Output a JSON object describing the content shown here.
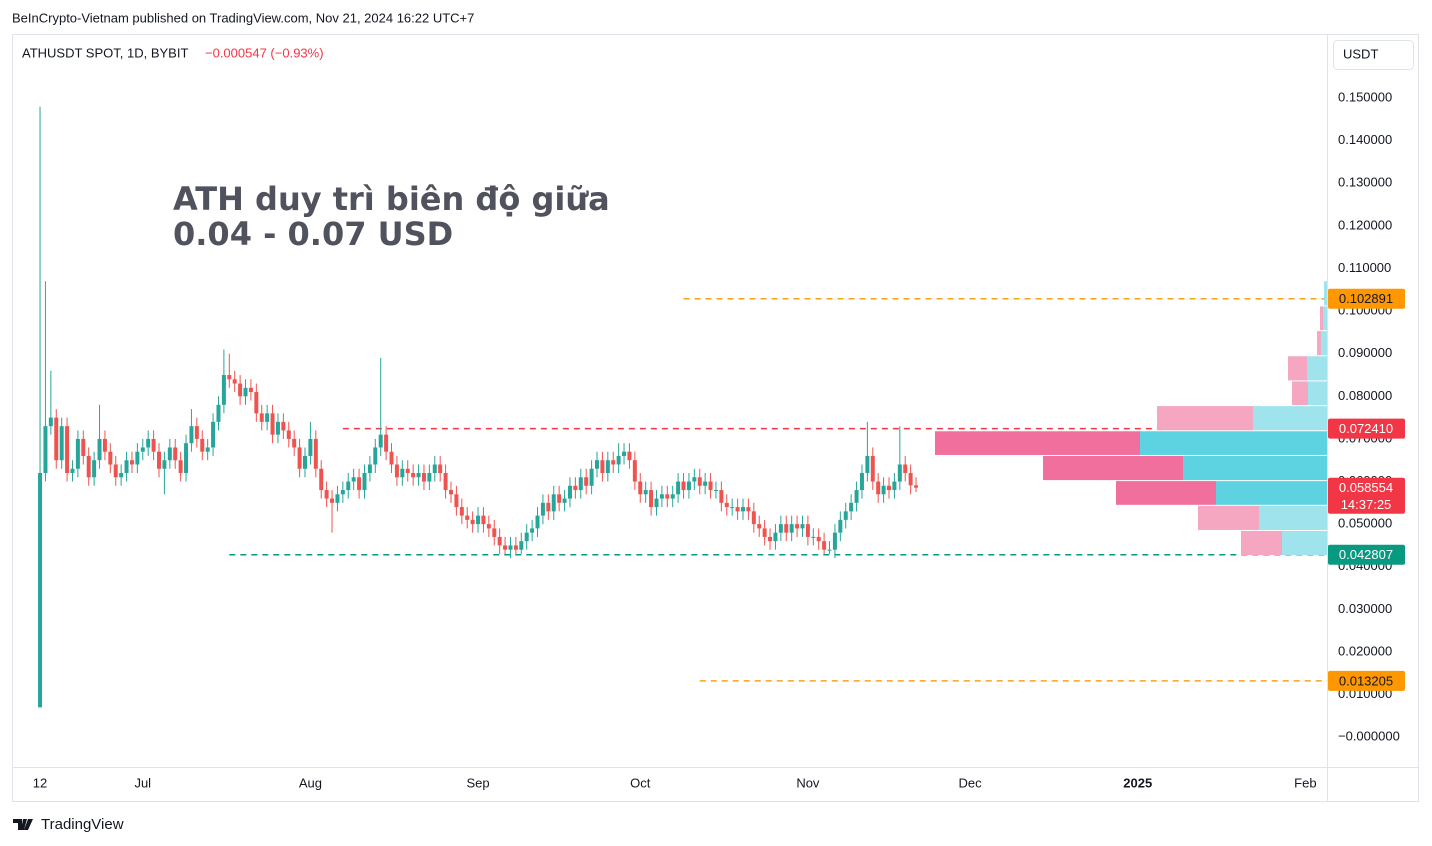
{
  "published": "BeInCrypto-Vietnam published on TradingView.com, Nov 21, 2024 16:22 UTC+7",
  "brand": "TradingView",
  "chart_data": {
    "type": "candlestick",
    "symbol": "ATHUSDT SPOT, 1D, BYBIT",
    "change": "−0.000547 (−0.93%)",
    "currency": "USDT",
    "annotation": [
      "ATH duy trì biên độ giữa",
      "0.04 - 0.07 USD"
    ],
    "countdown": "14:37:25",
    "up_color": "#26a69a",
    "down_color": "#ef5350",
    "grid": false,
    "xlim": [
      "2024-06-07",
      "2025-02-05"
    ],
    "xticks": [
      {
        "value": "2024-06-12",
        "label": "12"
      },
      {
        "value": "2024-07-01",
        "label": "Jul"
      },
      {
        "value": "2024-08-01",
        "label": "Aug"
      },
      {
        "value": "2024-09-01",
        "label": "Sep"
      },
      {
        "value": "2024-10-01",
        "label": "Oct"
      },
      {
        "value": "2024-11-01",
        "label": "Nov"
      },
      {
        "value": "2024-12-01",
        "label": "Dec"
      },
      {
        "value": "2025-01-01",
        "label": "2025"
      },
      {
        "value": "2025-02-01",
        "label": "Feb"
      }
    ],
    "ylim": [
      -0.007,
      0.1648
    ],
    "yticks": [
      {
        "value": 0,
        "label": "−0.000000"
      },
      {
        "value": 0.01,
        "label": "0.010000"
      },
      {
        "value": 0.02,
        "label": "0.020000"
      },
      {
        "value": 0.03,
        "label": "0.030000"
      },
      {
        "value": 0.04,
        "label": "0.040000"
      },
      {
        "value": 0.05,
        "label": "0.050000"
      },
      {
        "value": 0.06,
        "label": "0.060000"
      },
      {
        "value": 0.07,
        "label": "0.070000"
      },
      {
        "value": 0.08,
        "label": "0.080000"
      },
      {
        "value": 0.09,
        "label": "0.090000"
      },
      {
        "value": 0.1,
        "label": "0.100000"
      },
      {
        "value": 0.11,
        "label": "0.110000"
      },
      {
        "value": 0.12,
        "label": "0.120000"
      },
      {
        "value": 0.13,
        "label": "0.130000"
      },
      {
        "value": 0.14,
        "label": "0.140000"
      },
      {
        "value": 0.15,
        "label": "0.150000"
      }
    ],
    "x": [
      "2024-06-12",
      "2024-06-13",
      "2024-06-14",
      "2024-06-15",
      "2024-06-16",
      "2024-06-17",
      "2024-06-18",
      "2024-06-19",
      "2024-06-20",
      "2024-06-21",
      "2024-06-22",
      "2024-06-23",
      "2024-06-24",
      "2024-06-25",
      "2024-06-26",
      "2024-06-27",
      "2024-06-28",
      "2024-06-29",
      "2024-06-30",
      "2024-07-01",
      "2024-07-02",
      "2024-07-03",
      "2024-07-04",
      "2024-07-05",
      "2024-07-06",
      "2024-07-07",
      "2024-07-08",
      "2024-07-09",
      "2024-07-10",
      "2024-07-11",
      "2024-07-12",
      "2024-07-13",
      "2024-07-14",
      "2024-07-15",
      "2024-07-16",
      "2024-07-17",
      "2024-07-18",
      "2024-07-19",
      "2024-07-20",
      "2024-07-21",
      "2024-07-22",
      "2024-07-23",
      "2024-07-24",
      "2024-07-25",
      "2024-07-26",
      "2024-07-27",
      "2024-07-28",
      "2024-07-29",
      "2024-07-30",
      "2024-07-31",
      "2024-08-01",
      "2024-08-02",
      "2024-08-03",
      "2024-08-04",
      "2024-08-05",
      "2024-08-06",
      "2024-08-07",
      "2024-08-08",
      "2024-08-09",
      "2024-08-10",
      "2024-08-11",
      "2024-08-12",
      "2024-08-13",
      "2024-08-14",
      "2024-08-15",
      "2024-08-16",
      "2024-08-17",
      "2024-08-18",
      "2024-08-19",
      "2024-08-20",
      "2024-08-21",
      "2024-08-22",
      "2024-08-23",
      "2024-08-24",
      "2024-08-25",
      "2024-08-26",
      "2024-08-27",
      "2024-08-28",
      "2024-08-29",
      "2024-08-30",
      "2024-08-31",
      "2024-09-01",
      "2024-09-02",
      "2024-09-03",
      "2024-09-04",
      "2024-09-05",
      "2024-09-06",
      "2024-09-07",
      "2024-09-08",
      "2024-09-09",
      "2024-09-10",
      "2024-09-11",
      "2024-09-12",
      "2024-09-13",
      "2024-09-14",
      "2024-09-15",
      "2024-09-16",
      "2024-09-17",
      "2024-09-18",
      "2024-09-19",
      "2024-09-20",
      "2024-09-21",
      "2024-09-22",
      "2024-09-23",
      "2024-09-24",
      "2024-09-25",
      "2024-09-26",
      "2024-09-27",
      "2024-09-28",
      "2024-09-29",
      "2024-09-30",
      "2024-10-01",
      "2024-10-02",
      "2024-10-03",
      "2024-10-04",
      "2024-10-05",
      "2024-10-06",
      "2024-10-07",
      "2024-10-08",
      "2024-10-09",
      "2024-10-10",
      "2024-10-11",
      "2024-10-12",
      "2024-10-13",
      "2024-10-14",
      "2024-10-15",
      "2024-10-16",
      "2024-10-17",
      "2024-10-18",
      "2024-10-19",
      "2024-10-20",
      "2024-10-21",
      "2024-10-22",
      "2024-10-23",
      "2024-10-24",
      "2024-10-25",
      "2024-10-26",
      "2024-10-27",
      "2024-10-28",
      "2024-10-29",
      "2024-10-30",
      "2024-10-31",
      "2024-11-01",
      "2024-11-02",
      "2024-11-03",
      "2024-11-04",
      "2024-11-05",
      "2024-11-06",
      "2024-11-07",
      "2024-11-08",
      "2024-11-09",
      "2024-11-10",
      "2024-11-11",
      "2024-11-12",
      "2024-11-13",
      "2024-11-14",
      "2024-11-15",
      "2024-11-16",
      "2024-11-17",
      "2024-11-18",
      "2024-11-19",
      "2024-11-20",
      "2024-11-21"
    ],
    "ohlc": [
      [
        0.007,
        0.148,
        0.007,
        0.062
      ],
      [
        0.062,
        0.107,
        0.06,
        0.073
      ],
      [
        0.073,
        0.086,
        0.071,
        0.075
      ],
      [
        0.075,
        0.077,
        0.063,
        0.065
      ],
      [
        0.065,
        0.075,
        0.063,
        0.073
      ],
      [
        0.073,
        0.075,
        0.06,
        0.062
      ],
      [
        0.062,
        0.065,
        0.06,
        0.063
      ],
      [
        0.063,
        0.072,
        0.061,
        0.07
      ],
      [
        0.07,
        0.072,
        0.064,
        0.066
      ],
      [
        0.066,
        0.068,
        0.059,
        0.061
      ],
      [
        0.061,
        0.067,
        0.059,
        0.065
      ],
      [
        0.065,
        0.078,
        0.063,
        0.07
      ],
      [
        0.07,
        0.072,
        0.065,
        0.067
      ],
      [
        0.067,
        0.069,
        0.062,
        0.064
      ],
      [
        0.064,
        0.066,
        0.059,
        0.061
      ],
      [
        0.061,
        0.064,
        0.059,
        0.062
      ],
      [
        0.062,
        0.067,
        0.06,
        0.065
      ],
      [
        0.065,
        0.067,
        0.062,
        0.064
      ],
      [
        0.064,
        0.069,
        0.062,
        0.067
      ],
      [
        0.067,
        0.07,
        0.065,
        0.068
      ],
      [
        0.068,
        0.072,
        0.066,
        0.07
      ],
      [
        0.07,
        0.072,
        0.065,
        0.067
      ],
      [
        0.067,
        0.069,
        0.061,
        0.063
      ],
      [
        0.063,
        0.067,
        0.057,
        0.065
      ],
      [
        0.065,
        0.07,
        0.063,
        0.068
      ],
      [
        0.068,
        0.07,
        0.063,
        0.065
      ],
      [
        0.065,
        0.067,
        0.06,
        0.062
      ],
      [
        0.062,
        0.071,
        0.06,
        0.069
      ],
      [
        0.069,
        0.077,
        0.067,
        0.073
      ],
      [
        0.073,
        0.075,
        0.068,
        0.07
      ],
      [
        0.07,
        0.072,
        0.065,
        0.067
      ],
      [
        0.067,
        0.07,
        0.065,
        0.068
      ],
      [
        0.068,
        0.076,
        0.066,
        0.074
      ],
      [
        0.074,
        0.08,
        0.072,
        0.078
      ],
      [
        0.078,
        0.091,
        0.076,
        0.085
      ],
      [
        0.085,
        0.09,
        0.082,
        0.084
      ],
      [
        0.084,
        0.086,
        0.081,
        0.083
      ],
      [
        0.083,
        0.085,
        0.078,
        0.08
      ],
      [
        0.08,
        0.084,
        0.078,
        0.082
      ],
      [
        0.082,
        0.084,
        0.079,
        0.081
      ],
      [
        0.081,
        0.083,
        0.074,
        0.076
      ],
      [
        0.076,
        0.078,
        0.072,
        0.074
      ],
      [
        0.074,
        0.078,
        0.072,
        0.076
      ],
      [
        0.076,
        0.078,
        0.069,
        0.071
      ],
      [
        0.071,
        0.076,
        0.069,
        0.074
      ],
      [
        0.074,
        0.076,
        0.07,
        0.072
      ],
      [
        0.072,
        0.074,
        0.068,
        0.07
      ],
      [
        0.07,
        0.072,
        0.066,
        0.068
      ],
      [
        0.068,
        0.07,
        0.061,
        0.063
      ],
      [
        0.063,
        0.068,
        0.061,
        0.066
      ],
      [
        0.066,
        0.074,
        0.064,
        0.07
      ],
      [
        0.07,
        0.072,
        0.061,
        0.063
      ],
      [
        0.063,
        0.065,
        0.056,
        0.058
      ],
      [
        0.058,
        0.06,
        0.054,
        0.056
      ],
      [
        0.056,
        0.058,
        0.048,
        0.055
      ],
      [
        0.055,
        0.059,
        0.053,
        0.057
      ],
      [
        0.057,
        0.06,
        0.055,
        0.058
      ],
      [
        0.058,
        0.062,
        0.056,
        0.06
      ],
      [
        0.06,
        0.063,
        0.058,
        0.061
      ],
      [
        0.061,
        0.063,
        0.056,
        0.058
      ],
      [
        0.058,
        0.064,
        0.056,
        0.062
      ],
      [
        0.062,
        0.066,
        0.06,
        0.064
      ],
      [
        0.064,
        0.07,
        0.062,
        0.068
      ],
      [
        0.068,
        0.089,
        0.066,
        0.071
      ],
      [
        0.071,
        0.073,
        0.065,
        0.067
      ],
      [
        0.067,
        0.069,
        0.062,
        0.064
      ],
      [
        0.064,
        0.066,
        0.059,
        0.061
      ],
      [
        0.061,
        0.065,
        0.059,
        0.063
      ],
      [
        0.063,
        0.065,
        0.06,
        0.062
      ],
      [
        0.062,
        0.064,
        0.059,
        0.061
      ],
      [
        0.061,
        0.064,
        0.059,
        0.062
      ],
      [
        0.062,
        0.064,
        0.058,
        0.06
      ],
      [
        0.06,
        0.064,
        0.058,
        0.062
      ],
      [
        0.062,
        0.066,
        0.06,
        0.064
      ],
      [
        0.064,
        0.066,
        0.06,
        0.062
      ],
      [
        0.062,
        0.064,
        0.056,
        0.058
      ],
      [
        0.058,
        0.06,
        0.055,
        0.057
      ],
      [
        0.057,
        0.059,
        0.052,
        0.054
      ],
      [
        0.054,
        0.056,
        0.05,
        0.052
      ],
      [
        0.052,
        0.054,
        0.049,
        0.051
      ],
      [
        0.051,
        0.053,
        0.048,
        0.05
      ],
      [
        0.05,
        0.054,
        0.048,
        0.052
      ],
      [
        0.052,
        0.054,
        0.048,
        0.05
      ],
      [
        0.05,
        0.052,
        0.047,
        0.049
      ],
      [
        0.049,
        0.051,
        0.045,
        0.047
      ],
      [
        0.047,
        0.049,
        0.043,
        0.045
      ],
      [
        0.045,
        0.047,
        0.043,
        0.044
      ],
      [
        0.044,
        0.047,
        0.042,
        0.045
      ],
      [
        0.045,
        0.047,
        0.043,
        0.044
      ],
      [
        0.044,
        0.048,
        0.043,
        0.046
      ],
      [
        0.046,
        0.05,
        0.044,
        0.048
      ],
      [
        0.048,
        0.051,
        0.046,
        0.049
      ],
      [
        0.049,
        0.054,
        0.047,
        0.052
      ],
      [
        0.052,
        0.057,
        0.05,
        0.055
      ],
      [
        0.055,
        0.057,
        0.051,
        0.053
      ],
      [
        0.053,
        0.059,
        0.051,
        0.057
      ],
      [
        0.057,
        0.059,
        0.053,
        0.055
      ],
      [
        0.055,
        0.058,
        0.053,
        0.056
      ],
      [
        0.056,
        0.061,
        0.054,
        0.059
      ],
      [
        0.059,
        0.061,
        0.056,
        0.058
      ],
      [
        0.058,
        0.063,
        0.056,
        0.061
      ],
      [
        0.061,
        0.063,
        0.057,
        0.059
      ],
      [
        0.059,
        0.065,
        0.057,
        0.063
      ],
      [
        0.063,
        0.067,
        0.061,
        0.065
      ],
      [
        0.065,
        0.067,
        0.06,
        0.062
      ],
      [
        0.062,
        0.067,
        0.06,
        0.065
      ],
      [
        0.065,
        0.067,
        0.062,
        0.064
      ],
      [
        0.064,
        0.069,
        0.062,
        0.066
      ],
      [
        0.066,
        0.069,
        0.064,
        0.067
      ],
      [
        0.067,
        0.069,
        0.063,
        0.065
      ],
      [
        0.065,
        0.067,
        0.058,
        0.06
      ],
      [
        0.06,
        0.062,
        0.055,
        0.057
      ],
      [
        0.057,
        0.06,
        0.055,
        0.058
      ],
      [
        0.058,
        0.06,
        0.052,
        0.054
      ],
      [
        0.054,
        0.058,
        0.052,
        0.056
      ],
      [
        0.056,
        0.059,
        0.054,
        0.057
      ],
      [
        0.057,
        0.059,
        0.054,
        0.056
      ],
      [
        0.056,
        0.059,
        0.054,
        0.057
      ],
      [
        0.057,
        0.062,
        0.055,
        0.06
      ],
      [
        0.06,
        0.062,
        0.056,
        0.058
      ],
      [
        0.058,
        0.062,
        0.056,
        0.06
      ],
      [
        0.06,
        0.063,
        0.058,
        0.061
      ],
      [
        0.061,
        0.063,
        0.057,
        0.059
      ],
      [
        0.059,
        0.062,
        0.057,
        0.06
      ],
      [
        0.06,
        0.062,
        0.056,
        0.058
      ],
      [
        0.058,
        0.06,
        0.056,
        0.058
      ],
      [
        0.058,
        0.06,
        0.053,
        0.055
      ],
      [
        0.055,
        0.057,
        0.052,
        0.054
      ],
      [
        0.054,
        0.056,
        0.052,
        0.054
      ],
      [
        0.054,
        0.056,
        0.051,
        0.053
      ],
      [
        0.053,
        0.056,
        0.051,
        0.054
      ],
      [
        0.054,
        0.056,
        0.051,
        0.053
      ],
      [
        0.053,
        0.055,
        0.048,
        0.05
      ],
      [
        0.05,
        0.052,
        0.047,
        0.049
      ],
      [
        0.049,
        0.051,
        0.045,
        0.047
      ],
      [
        0.047,
        0.049,
        0.044,
        0.046
      ],
      [
        0.046,
        0.05,
        0.044,
        0.048
      ],
      [
        0.048,
        0.052,
        0.046,
        0.05
      ],
      [
        0.05,
        0.052,
        0.046,
        0.048
      ],
      [
        0.048,
        0.052,
        0.046,
        0.05
      ],
      [
        0.05,
        0.052,
        0.047,
        0.049
      ],
      [
        0.049,
        0.052,
        0.047,
        0.05
      ],
      [
        0.05,
        0.052,
        0.045,
        0.047
      ],
      [
        0.047,
        0.049,
        0.045,
        0.047
      ],
      [
        0.047,
        0.049,
        0.044,
        0.046
      ],
      [
        0.046,
        0.048,
        0.043,
        0.044
      ],
      [
        0.044,
        0.046,
        0.043,
        0.044
      ],
      [
        0.044,
        0.05,
        0.042,
        0.048
      ],
      [
        0.048,
        0.053,
        0.046,
        0.051
      ],
      [
        0.051,
        0.055,
        0.049,
        0.053
      ],
      [
        0.053,
        0.057,
        0.051,
        0.055
      ],
      [
        0.055,
        0.06,
        0.053,
        0.058
      ],
      [
        0.058,
        0.064,
        0.056,
        0.062
      ],
      [
        0.062,
        0.074,
        0.06,
        0.066
      ],
      [
        0.066,
        0.068,
        0.058,
        0.06
      ],
      [
        0.06,
        0.062,
        0.055,
        0.057
      ],
      [
        0.057,
        0.061,
        0.055,
        0.059
      ],
      [
        0.059,
        0.061,
        0.056,
        0.058
      ],
      [
        0.058,
        0.062,
        0.056,
        0.06
      ],
      [
        0.06,
        0.073,
        0.058,
        0.064
      ],
      [
        0.064,
        0.066,
        0.06,
        0.062
      ],
      [
        0.062,
        0.064,
        0.057,
        0.059101
      ],
      [
        0.059101,
        0.061,
        0.0575,
        0.058554
      ]
    ],
    "levels": [
      {
        "value": 0.102891,
        "color": "#f7a21b",
        "tag_color": "#ff9800",
        "start": "2024-10-09"
      },
      {
        "value": 0.07241,
        "label": "0.072410",
        "color": "#f23645",
        "tag_color": "#f23645",
        "start": "2024-08-07"
      },
      {
        "value": 0.042807,
        "color": "#089981",
        "tag_color": "#089981",
        "start": "2024-07-17"
      },
      {
        "value": 0.013205,
        "color": "#f7a21b",
        "tag_color": "#ff9800",
        "start": "2024-10-12"
      }
    ],
    "volume_profile": {
      "bins": [
        0.0425,
        0.0484,
        0.0543,
        0.0601,
        0.066,
        0.0718,
        0.0777,
        0.0835,
        0.0894,
        0.0953,
        0.1011,
        0.107
      ],
      "up": [
        45,
        68,
        111,
        144,
        187,
        74,
        19,
        20,
        6,
        4,
        3
      ],
      "down": [
        41,
        61,
        100,
        140,
        205,
        96,
        16,
        19,
        4,
        3,
        0
      ],
      "up_colors": [
        "#9fe3ec",
        "#9fe3ec",
        "#5dd3e1",
        "#5dd3e1",
        "#5dd3e1",
        "#9fe3ec",
        "#9fe3ec",
        "#9fe3ec",
        "#9fe3ec",
        "#9fe3ec",
        "#9fe3ec"
      ],
      "down_colors": [
        "#f5a6c1",
        "#f5a6c1",
        "#f06f9c",
        "#f06f9c",
        "#f06f9c",
        "#f5a6c1",
        "#f5a6c1",
        "#f5a6c1",
        "#f5a6c1",
        "#f5a6c1",
        "#f5a6c1"
      ]
    }
  }
}
